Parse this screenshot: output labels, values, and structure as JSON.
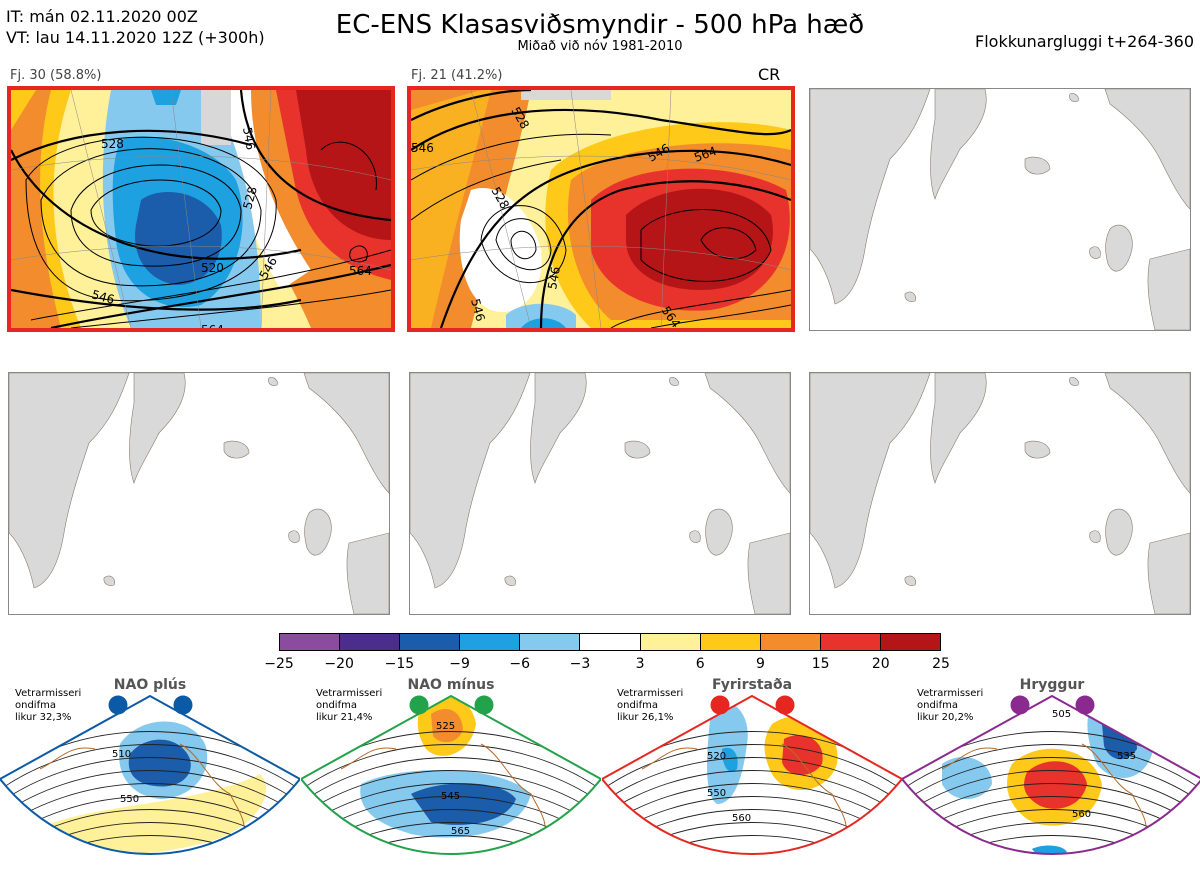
{
  "header": {
    "it_line": "IT: mán 02.11.2020 00Z",
    "vt_line": "VT: lau 14.11.2020 12Z  (+300h)",
    "title": "EC-ENS Klasasviðsmyndir - 500 hPa hæð",
    "subtitle": "Miðað við nóv 1981-2010",
    "window": "Flokkunargluggi t+264-360"
  },
  "clusters": [
    {
      "label": "Fj. 30 (58.8%)",
      "highlight": true,
      "regime_code": "",
      "contours": [
        "528",
        "546",
        "528",
        "546",
        "520",
        "564",
        "546",
        "564"
      ]
    },
    {
      "label": "Fj. 21 (41.2%)",
      "highlight": true,
      "regime_code": "CR",
      "contours": [
        "528",
        "546",
        "546",
        "564",
        "528",
        "546",
        "546",
        "564"
      ]
    },
    {
      "label": "",
      "highlight": false,
      "regime_code": "",
      "contours": []
    },
    {
      "label": "",
      "highlight": false,
      "regime_code": "",
      "contours": []
    },
    {
      "label": "",
      "highlight": false,
      "regime_code": "",
      "contours": []
    },
    {
      "label": "",
      "highlight": false,
      "regime_code": "",
      "contours": []
    }
  ],
  "colorbar": {
    "colors": [
      "#8b4c9f",
      "#4b2e8c",
      "#1b5cab",
      "#1da1e0",
      "#86c9ee",
      "#ffffff",
      "#fff09a",
      "#ffc91a",
      "#f28c2c",
      "#e8332c",
      "#b51517"
    ],
    "ticks": [
      "−25",
      "−20",
      "−15",
      "−9",
      "−6",
      "−3",
      "3",
      "6",
      "9",
      "15",
      "20",
      "25"
    ]
  },
  "regimes": [
    {
      "name": "NAO plús",
      "note": [
        "Vetrarmisseri",
        "ondifma",
        "likur 32,3%"
      ],
      "color": "#0b5aa6",
      "contours": [
        "510",
        "550"
      ]
    },
    {
      "name": "NAO mínus",
      "note": [
        "Vetrarmisseri",
        "ondifma",
        "likur 21,4%"
      ],
      "color": "#22a24a",
      "contours": [
        "525",
        "545",
        "565"
      ]
    },
    {
      "name": "Fyrirstaða",
      "note": [
        "Vetrarmisseri",
        "ondifma",
        "likur 26,1%"
      ],
      "color": "#e62620",
      "contours": [
        "520",
        "550",
        "560"
      ]
    },
    {
      "name": "Hryggur",
      "note": [
        "Vetrarmisseri",
        "ondifma",
        "likur 20,2%"
      ],
      "color": "#8a2a8f",
      "contours": [
        "505",
        "535",
        "560"
      ]
    }
  ]
}
